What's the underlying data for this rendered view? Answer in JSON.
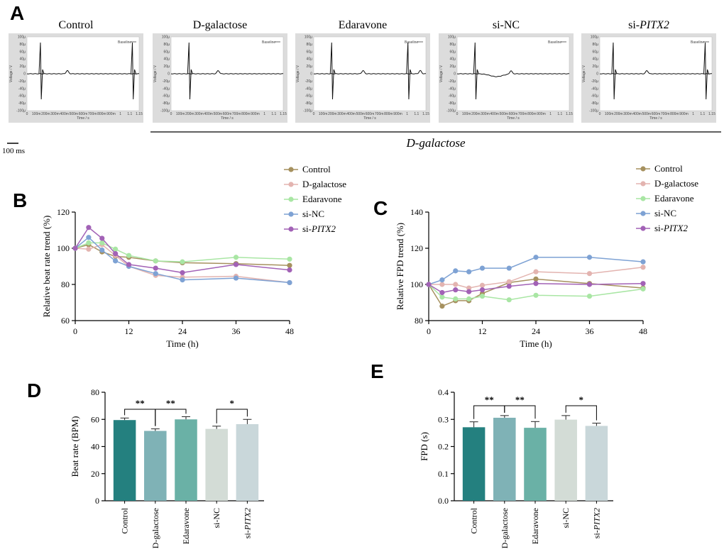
{
  "panels": {
    "A": "A",
    "B": "B",
    "C": "C",
    "D": "D",
    "E": "E"
  },
  "colors": {
    "Control": "#a6915f",
    "D-galactose": "#e3b4b0",
    "Edaravone": "#a9e6a4",
    "si-NC": "#7ea2d4",
    "si-PITX2": "#a262b6",
    "bars": [
      "#24807f",
      "#7fb2b6",
      "#6ab1a6",
      "#d3dcd6",
      "#c9d7da"
    ]
  },
  "panel_a": {
    "conditions": [
      {
        "name": "Control",
        "italic": ""
      },
      {
        "name": "D-galactose",
        "italic": ""
      },
      {
        "name": "Edaravone",
        "italic": ""
      },
      {
        "name": "si-NC",
        "italic": ""
      },
      {
        "name": "si-",
        "italic": "PITX2"
      }
    ],
    "legend_text": "Baseline",
    "yaxis_text": "Voltage / V",
    "xaxis_text": "Time / s",
    "ytick_labels": [
      "100µ",
      "80µ",
      "60µ",
      "40µ",
      "20µ",
      "0",
      "-20µ",
      "-40µ",
      "-60µ",
      "-80µ",
      "-100µ"
    ],
    "xtick_labels": [
      "0",
      "100m",
      "200m",
      "300m",
      "400m",
      "500m",
      "600m",
      "700m",
      "800m",
      "900m",
      "1",
      "1.1",
      "1.15"
    ],
    "scale_bar": "100 ms",
    "group_label": "D-galactose"
  },
  "chart_data": [
    {
      "panel": "B",
      "type": "line",
      "title": "",
      "xlabel": "Time (h)",
      "ylabel": "Relative beat rate trend (%)",
      "x": [
        0,
        3,
        6,
        9,
        12,
        18,
        24,
        36,
        48
      ],
      "xticks": [
        "0",
        "12",
        "24",
        "36",
        "48"
      ],
      "xtick_values": [
        0,
        12,
        24,
        36,
        48
      ],
      "xlim": [
        0,
        48
      ],
      "ylim": [
        60,
        120
      ],
      "yticks": [
        60,
        80,
        100,
        120
      ],
      "series": [
        {
          "name": "Control",
          "values": [
            100,
            102,
            98,
            95.5,
            95,
            93,
            92,
            91.5,
            90.5
          ]
        },
        {
          "name": "D-galactose",
          "values": [
            100,
            99.5,
            102,
            96,
            90,
            85,
            84,
            84.5,
            81
          ]
        },
        {
          "name": "Edaravone",
          "values": [
            100,
            103,
            103,
            99.5,
            96,
            93,
            92.5,
            95,
            94
          ]
        },
        {
          "name": "si-NC",
          "values": [
            100,
            106,
            99,
            93,
            90,
            86,
            82.5,
            83.5,
            81
          ]
        },
        {
          "name": "si-PITX2",
          "values": [
            100,
            111.5,
            105.5,
            97,
            91,
            89,
            86.5,
            91,
            88
          ]
        }
      ]
    },
    {
      "panel": "C",
      "type": "line",
      "title": "",
      "xlabel": "Time (h)",
      "ylabel": "Relative FPD trend (%)",
      "x": [
        0,
        3,
        6,
        9,
        12,
        18,
        24,
        36,
        48
      ],
      "xticks": [
        "0",
        "12",
        "24",
        "36",
        "48"
      ],
      "xtick_values": [
        0,
        12,
        24,
        36,
        48
      ],
      "xlim": [
        0,
        48
      ],
      "ylim": [
        80,
        140
      ],
      "yticks": [
        80,
        100,
        120,
        140
      ],
      "series": [
        {
          "name": "Control",
          "values": [
            100,
            88,
            91,
            91,
            95,
            101,
            103,
            100.5,
            98
          ]
        },
        {
          "name": "D-galactose",
          "values": [
            100,
            100,
            100,
            98,
            99.5,
            101.5,
            107,
            106,
            109.5
          ]
        },
        {
          "name": "Edaravone",
          "values": [
            100,
            93,
            92,
            92,
            93.5,
            91.5,
            94,
            93.5,
            97.5
          ]
        },
        {
          "name": "si-NC",
          "values": [
            100,
            102.5,
            107.5,
            107,
            109,
            109,
            115,
            115,
            112.5
          ]
        },
        {
          "name": "si-PITX2",
          "values": [
            100,
            95.5,
            97,
            96,
            97,
            99,
            100.5,
            100,
            100.5
          ]
        }
      ]
    },
    {
      "panel": "D",
      "type": "bar",
      "title": "",
      "xlabel": "",
      "ylabel": "Beat rate (BPM)",
      "categories": [
        "Control",
        "D-galactose",
        "Edaravone",
        "si-NC",
        "si-PITX2"
      ],
      "values": [
        59.5,
        51.5,
        60,
        53,
        56.5
      ],
      "errors": [
        1.5,
        1.5,
        2,
        2,
        3.5
      ],
      "ylim": [
        0,
        80
      ],
      "yticks": [
        0,
        20,
        40,
        60,
        80
      ],
      "ytick_labels": [
        "0",
        "20",
        "40",
        "60",
        "80"
      ],
      "significance": [
        {
          "from": 0,
          "to": 1,
          "label": "**"
        },
        {
          "from": 1,
          "to": 2,
          "label": "**"
        },
        {
          "from": 3,
          "to": 4,
          "label": "*"
        }
      ]
    },
    {
      "panel": "E",
      "type": "bar",
      "title": "",
      "xlabel": "",
      "ylabel": "FPD (s)",
      "categories": [
        "Control",
        "D-galactose",
        "Edaravone",
        "si-NC",
        "si-PITX2"
      ],
      "values": [
        0.271,
        0.306,
        0.269,
        0.299,
        0.276
      ],
      "errors": [
        0.02,
        0.008,
        0.023,
        0.015,
        0.01
      ],
      "ylim": [
        0,
        0.4
      ],
      "yticks": [
        0,
        0.1,
        0.2,
        0.3,
        0.4
      ],
      "ytick_labels": [
        "0.0",
        "0.1",
        "0.2",
        "0.3",
        "0.4"
      ],
      "significance": [
        {
          "from": 0,
          "to": 1,
          "label": "**"
        },
        {
          "from": 1,
          "to": 2,
          "label": "**"
        },
        {
          "from": 3,
          "to": 4,
          "label": "*"
        }
      ]
    }
  ]
}
